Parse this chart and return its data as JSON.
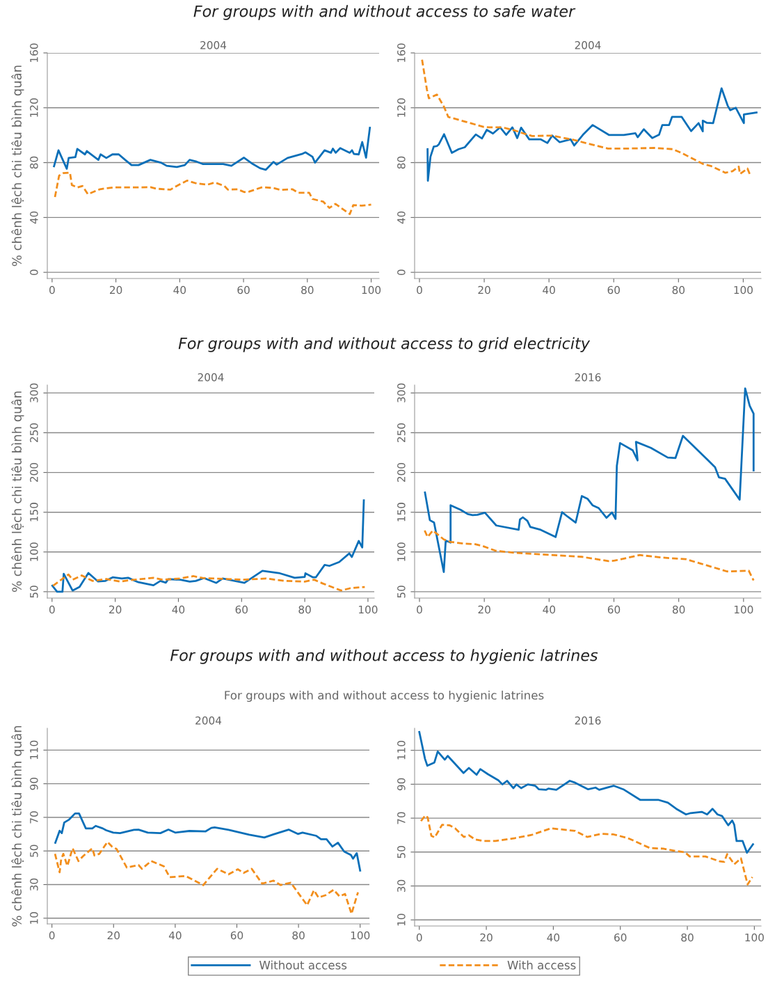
{
  "chart_data": [
    {
      "type": "line",
      "title": "2004",
      "ylabel": "% chênh lệch chi tiêu bình quân",
      "annotations": [
        "For groups with and without access to safe water"
      ],
      "xlim": [
        -1.5,
        102.5
      ],
      "ylim": [
        -4.5,
        160
      ],
      "xticks": [
        0,
        20,
        40,
        60,
        80,
        100
      ],
      "yticks": [
        0,
        40,
        80,
        120,
        160
      ],
      "grid": "y",
      "series": [
        {
          "color": "#0a6fb8",
          "line_style": "solid",
          "x": [
            0.6,
            2,
            4.6,
            5.2,
            7.3,
            7.9,
            10.3,
            10.9,
            14.5,
            15.2,
            17,
            18.9,
            20.9,
            22.9,
            24.9,
            27.1,
            30.8,
            34.1,
            35.9,
            39.1,
            41.6,
            43.1,
            45.3,
            47.2,
            53.6,
            56.2,
            60.1,
            62.9,
            65.2,
            67,
            69.4,
            70.4,
            73.8,
            78.3,
            79.4,
            81.6,
            82.4,
            85.4,
            87.4,
            88,
            88.9,
            90.3,
            93.3,
            94,
            94.6,
            96.1,
            97.2,
            98.4,
            99.6
          ],
          "values": [
            77.3,
            89,
            75.5,
            83.4,
            84,
            90,
            86,
            88.4,
            82,
            86,
            83.4,
            86,
            86,
            82,
            78.2,
            78.2,
            82,
            80,
            77.7,
            76.8,
            78.2,
            82,
            80.7,
            79,
            79,
            77.7,
            83.6,
            79,
            75.9,
            74.8,
            80.5,
            78.6,
            83.4,
            86.3,
            87.5,
            84.3,
            80,
            89,
            87.2,
            90.2,
            87.2,
            90.6,
            87.2,
            89,
            86.3,
            86,
            95,
            83.6,
            105.4
          ]
        },
        {
          "color": "#f28e1c",
          "line_style": "dashed",
          "x": [
            0.9,
            2.2,
            3.5,
            5.6,
            6.2,
            7.9,
            9.5,
            11.2,
            15,
            19.1,
            26.6,
            30.9,
            32.6,
            37.1,
            38.9,
            42.3,
            45.3,
            48.7,
            51,
            54,
            55.1,
            58.1,
            60.3,
            61.8,
            65.9,
            69.3,
            71.6,
            75.3,
            77.2,
            80.6,
            81.6,
            85,
            86.9,
            88.8,
            93.3,
            94.4,
            97,
            100
          ],
          "values": [
            54.9,
            70.5,
            72.3,
            72.7,
            63.7,
            61.9,
            63,
            57,
            60.6,
            61.9,
            61.9,
            62.1,
            61,
            60.3,
            62.8,
            66.9,
            64.8,
            63.9,
            65.5,
            63,
            60.3,
            60.6,
            58.5,
            58.9,
            62.1,
            61.5,
            60.1,
            60.6,
            58,
            58,
            53.5,
            51.5,
            47,
            49.9,
            42.5,
            49,
            48.6,
            49.4
          ]
        }
      ]
    },
    {
      "type": "line",
      "title": "2004",
      "xlim": [
        -1.5,
        105.5
      ],
      "ylim": [
        -4.5,
        160
      ],
      "xticks": [
        0,
        20,
        40,
        60,
        80,
        100
      ],
      "yticks": [
        0,
        40,
        80,
        120,
        160
      ],
      "grid": "y",
      "series": [
        {
          "color": "#0a6fb8",
          "line_style": "solid",
          "x": [
            2.5,
            2.6,
            3.4,
            4.4,
            5.4,
            6,
            7.6,
            10,
            12.1,
            14,
            17.4,
            19.3,
            20.8,
            22.7,
            24.9,
            26.8,
            28.7,
            30.2,
            31.4,
            33.9,
            37.4,
            39.5,
            41,
            43.3,
            46.7,
            47.8,
            50.5,
            53.5,
            58.6,
            63.1,
            66.7,
            67.4,
            69.3,
            71.9,
            74,
            75,
            77.1,
            78,
            81,
            83.9,
            86.2,
            87.5,
            87.5,
            88.8,
            90.7,
            93.3,
            95.2,
            96,
            97.7,
            100.2,
            100.2,
            104.1
          ],
          "values": [
            89.8,
            66.8,
            84.3,
            91.6,
            92.1,
            93.4,
            100.7,
            87.1,
            89.8,
            91.2,
            100.5,
            97.6,
            103.9,
            101.2,
            105.7,
            100.3,
            105.7,
            97.9,
            105.5,
            97,
            97,
            94.3,
            99.7,
            94.9,
            97,
            92.5,
            100.3,
            107.4,
            100.1,
            100.1,
            101.4,
            98.5,
            104.3,
            97.9,
            100.3,
            107.4,
            107.4,
            113.3,
            113.3,
            103,
            108.8,
            102.8,
            110.6,
            109,
            108.8,
            134.2,
            121.5,
            118.2,
            120,
            108.8,
            115.1,
            116.6
          ]
        },
        {
          "color": "#f28e1c",
          "line_style": "dashed",
          "x": [
            0.8,
            2.3,
            2.9,
            5.4,
            7.6,
            8.9,
            14.4,
            19.7,
            21.5,
            25.7,
            29.5,
            31.7,
            34.8,
            40.8,
            46.9,
            52.2,
            58.2,
            65,
            72.6,
            78.2,
            80.9,
            87.7,
            90,
            94.5,
            96.7,
            98.6,
            99,
            101.3,
            102
          ],
          "values": [
            155,
            133.3,
            126.9,
            129.6,
            120.6,
            113.3,
            109.7,
            106.1,
            105.7,
            105.7,
            103.4,
            101.6,
            99.4,
            99.7,
            97,
            93.8,
            90.3,
            90.3,
            90.7,
            89.8,
            87.1,
            78.9,
            77.6,
            72.6,
            73.8,
            77.1,
            71.7,
            75.7,
            71.7
          ]
        }
      ]
    },
    {
      "type": "line",
      "title": "2004",
      "ylabel": "% chênh lệch chi tiêu bình quân",
      "annotations": [
        "For groups with and without access to grid electricity"
      ],
      "xlim": [
        -1.5,
        102
      ],
      "ylim": [
        42,
        310
      ],
      "xticks": [
        0,
        20,
        40,
        60,
        80,
        100
      ],
      "yticks": [
        50,
        100,
        150,
        200,
        250,
        300
      ],
      "grid": "y",
      "series": [
        {
          "color": "#0a6fb8",
          "line_style": "solid",
          "x": [
            0.1,
            1.6,
            3.3,
            3.7,
            6.5,
            8.7,
            11.5,
            14.5,
            16.9,
            19.2,
            22.1,
            24.1,
            27.3,
            32.1,
            34.3,
            36,
            36.8,
            40.6,
            43.6,
            45.5,
            48.1,
            52,
            54,
            60.9,
            66.6,
            71.8,
            76.8,
            80,
            80.2,
            82.6,
            83.5,
            86.3,
            87.8,
            90.9,
            94.1,
            94.9,
            97.1,
            98.2,
            98.7
          ],
          "values": [
            57.5,
            50,
            50,
            72.6,
            51.5,
            56,
            73.5,
            63,
            63.6,
            68.1,
            66.6,
            67.5,
            62,
            58.1,
            63.6,
            61.4,
            65.7,
            65.1,
            62.7,
            63.6,
            67.2,
            61.1,
            66.6,
            61.1,
            76.2,
            73.5,
            67.5,
            68.7,
            73.2,
            68.1,
            68.1,
            83.7,
            82.5,
            87.3,
            98.2,
            93.7,
            113.9,
            105.7,
            165
          ]
        },
        {
          "color": "#f28e1c",
          "line_style": "dashed",
          "x": [
            0.3,
            5.2,
            6.5,
            9.4,
            12.8,
            17.2,
            21.7,
            24.7,
            32.1,
            35.1,
            40.3,
            44.8,
            47.7,
            60.3,
            67.8,
            73.7,
            80,
            83,
            85.6,
            91.5,
            94.5,
            99
          ],
          "values": [
            57.5,
            71.7,
            65.1,
            70.5,
            63.6,
            66,
            62.7,
            64.5,
            67.5,
            65.1,
            66.6,
            69.6,
            67.2,
            65.1,
            66.6,
            63.6,
            62.7,
            65.1,
            60.5,
            51.5,
            54.5,
            56
          ]
        }
      ]
    },
    {
      "type": "line",
      "title": "2016",
      "xlim": [
        -1.5,
        105.4
      ],
      "ylim": [
        42,
        310
      ],
      "xticks": [
        0,
        20,
        40,
        60,
        80,
        100
      ],
      "yticks": [
        50,
        100,
        150,
        200,
        250,
        300
      ],
      "grid": "y",
      "series": [
        {
          "color": "#0a6fb8",
          "line_style": "solid",
          "x": [
            1.7,
            3.2,
            4.5,
            7.5,
            8.1,
            9.6,
            9.6,
            12.7,
            14.9,
            16.4,
            17.9,
            20.2,
            23.7,
            30.6,
            31,
            31.9,
            33.3,
            34.2,
            37.4,
            42,
            44,
            45.7,
            48.2,
            50.1,
            51.9,
            53.4,
            55.3,
            57.7,
            59.4,
            60.5,
            60.9,
            61.9,
            65.8,
            67.3,
            66.8,
            71.4,
            76.6,
            79,
            81.3,
            88.2,
            91.2,
            92.4,
            94.3,
            98.8,
            100.5,
            101.9,
            103.1,
            103.1
          ],
          "values": [
            174.8,
            140,
            137,
            74.8,
            114.2,
            111.8,
            158.8,
            153,
            147.6,
            146.4,
            146.7,
            149.4,
            133.3,
            127.9,
            140.9,
            143.6,
            139.1,
            131.5,
            127.9,
            118.8,
            150,
            144.5,
            137,
            170.3,
            166.7,
            158.8,
            155.2,
            143,
            149.7,
            141.5,
            208.2,
            237,
            227.9,
            215.2,
            238.5,
            230.9,
            218.8,
            218.2,
            246.1,
            218.8,
            206.7,
            193.9,
            192.1,
            165.8,
            305.8,
            283.9,
            273.9,
            202.7
          ]
        },
        {
          "color": "#f28e1c",
          "line_style": "dashed",
          "x": [
            1.6,
            2.5,
            4.1,
            7.5,
            9.6,
            13.5,
            17.2,
            19.4,
            23.5,
            29.1,
            38.9,
            50.1,
            58.3,
            60.2,
            68,
            74.7,
            82.2,
            86.7,
            94.9,
            101.6,
            103.1
          ],
          "values": [
            127,
            118.8,
            127,
            115.8,
            112.7,
            110.6,
            109.7,
            107.6,
            101.5,
            99.1,
            96.7,
            93.9,
            88.5,
            89.1,
            96.1,
            93,
            90.9,
            85.5,
            75.5,
            76.4,
            64.2
          ]
        }
      ]
    },
    {
      "type": "line",
      "title": "2004",
      "ylabel": "% chênh lệch chi tiêu bình quân",
      "annotations": [
        "For groups with and without access to hygienic latrines",
        "For groups with and without access to hygienic latrines"
      ],
      "xlim": [
        -1.5,
        103
      ],
      "ylim": [
        6.6,
        123
      ],
      "xticks": [
        0,
        20,
        40,
        60,
        80,
        100
      ],
      "yticks": [
        10,
        30,
        50,
        70,
        90,
        110
      ],
      "grid": "y",
      "series": [
        {
          "color": "#0a6fb8",
          "line_style": "solid",
          "x": [
            1.1,
            2.5,
            3.2,
            4,
            5.6,
            7.5,
            8.8,
            11,
            13.1,
            14.2,
            16.5,
            17.6,
            19.9,
            22.1,
            26.6,
            28.1,
            31.1,
            35.2,
            37.8,
            40.1,
            44.6,
            49.8,
            51.7,
            52.8,
            57.3,
            64,
            68.9,
            71.9,
            76.8,
            79.8,
            81.3,
            85.8,
            87.3,
            89.1,
            91,
            92.8,
            94.8,
            97,
            97.7,
            98.9,
            100
          ],
          "values": [
            54.9,
            62,
            60.6,
            66.9,
            68.7,
            72.3,
            72.3,
            63.4,
            63.4,
            64.9,
            63.4,
            62.3,
            60.9,
            60.6,
            62.6,
            62.7,
            60.9,
            60.6,
            62.7,
            60.9,
            61.9,
            61.6,
            63.7,
            64,
            62.6,
            59.7,
            58,
            59.9,
            62.7,
            60.1,
            60.9,
            59,
            57,
            57,
            52.6,
            54.9,
            49.7,
            47.6,
            45.4,
            48.7,
            38.3
          ]
        },
        {
          "color": "#f28e1c",
          "line_style": "dashed",
          "x": [
            1,
            2.5,
            3,
            3.7,
            5,
            6.7,
            8.6,
            10.1,
            13.1,
            13.8,
            15.4,
            18,
            19.5,
            21,
            24.3,
            28.1,
            29.2,
            32.2,
            36.3,
            38.2,
            43.4,
            49.1,
            53.6,
            57.3,
            60.3,
            62.2,
            64.8,
            68.2,
            71.9,
            74.2,
            77.5,
            82.8,
            85,
            86.5,
            88.8,
            91.4,
            93.3,
            95.1,
            97.2,
            99.3
          ],
          "values": [
            48.3,
            37.3,
            45.1,
            48.3,
            41.1,
            51.6,
            44,
            46.9,
            51.6,
            47.3,
            48.3,
            55.4,
            52.6,
            51.1,
            40.1,
            41.6,
            39.4,
            44,
            40.9,
            34.4,
            35.1,
            29.7,
            39.4,
            36.1,
            39.1,
            36.9,
            39.4,
            30.6,
            32.3,
            29.7,
            31.1,
            17.7,
            26.6,
            22.3,
            23.7,
            26.9,
            23,
            24.4,
            12.6,
            25.4
          ]
        }
      ]
    },
    {
      "type": "line",
      "title": "2016",
      "xlim": [
        -1.4,
        102
      ],
      "ylim": [
        6.4,
        123
      ],
      "xticks": [
        0,
        20,
        40,
        60,
        80,
        100
      ],
      "yticks": [
        10,
        30,
        50,
        70,
        90,
        110
      ],
      "grid": "y",
      "legend": "bottom",
      "series": [
        {
          "name": "Without access",
          "color": "#0a6fb8",
          "line_style": "solid",
          "x": [
            0,
            1.7,
            2.4,
            4.5,
            5.5,
            7.6,
            8.5,
            13.2,
            14.8,
            17.1,
            18.2,
            20.5,
            23.6,
            24.8,
            26.2,
            28.1,
            29,
            30.4,
            32.4,
            34.6,
            35.7,
            37.8,
            38.5,
            40.9,
            44.9,
            46.5,
            50.4,
            52.6,
            53.7,
            58,
            60.9,
            65.9,
            71.3,
            74.2,
            76.7,
            79.6,
            81,
            84.3,
            85.9,
            87.5,
            89,
            90.4,
            92.2,
            93.4,
            94,
            94.7,
            96.5,
            97.8,
            99.6
          ],
          "values": [
            120.8,
            105,
            100.9,
            102.8,
            109.3,
            104.5,
            106.7,
            96.6,
            99.6,
            95.6,
            98.9,
            95.9,
            92.3,
            89.9,
            92,
            87.7,
            89.9,
            87.7,
            89.9,
            89.1,
            87,
            86.7,
            87.4,
            86.7,
            92,
            90.9,
            87,
            88,
            86.7,
            89.1,
            87,
            80.8,
            80.8,
            79.1,
            75.5,
            72.2,
            73,
            73.7,
            72.2,
            75.5,
            72.2,
            71.2,
            65.8,
            68.6,
            66.1,
            56.5,
            56.5,
            49.6,
            54.6
          ]
        },
        {
          "name": "With access",
          "color": "#f28e1c",
          "line_style": "dashed",
          "x": [
            0.5,
            1.8,
            2.5,
            3.6,
            4.6,
            6.8,
            9,
            10.7,
            13.3,
            14.8,
            16.6,
            19.1,
            22.7,
            28.5,
            33.5,
            39.3,
            46.5,
            50.1,
            54.4,
            58,
            62.3,
            68.8,
            72.8,
            76.4,
            79.3,
            80.7,
            85.4,
            89.7,
            91,
            91.9,
            94,
            96,
            98,
            99.4
          ],
          "values": [
            68.3,
            71.6,
            70.4,
            59.6,
            58.6,
            66.1,
            65.8,
            64,
            58.9,
            59.9,
            57.5,
            56.5,
            56.5,
            58.2,
            60.1,
            64,
            62.5,
            58.9,
            60.8,
            60.4,
            58.2,
            52.4,
            52,
            50.7,
            49.9,
            47.4,
            47.4,
            44.5,
            44.2,
            48.8,
            42.8,
            46.3,
            30.9,
            35.2
          ]
        }
      ]
    }
  ]
}
